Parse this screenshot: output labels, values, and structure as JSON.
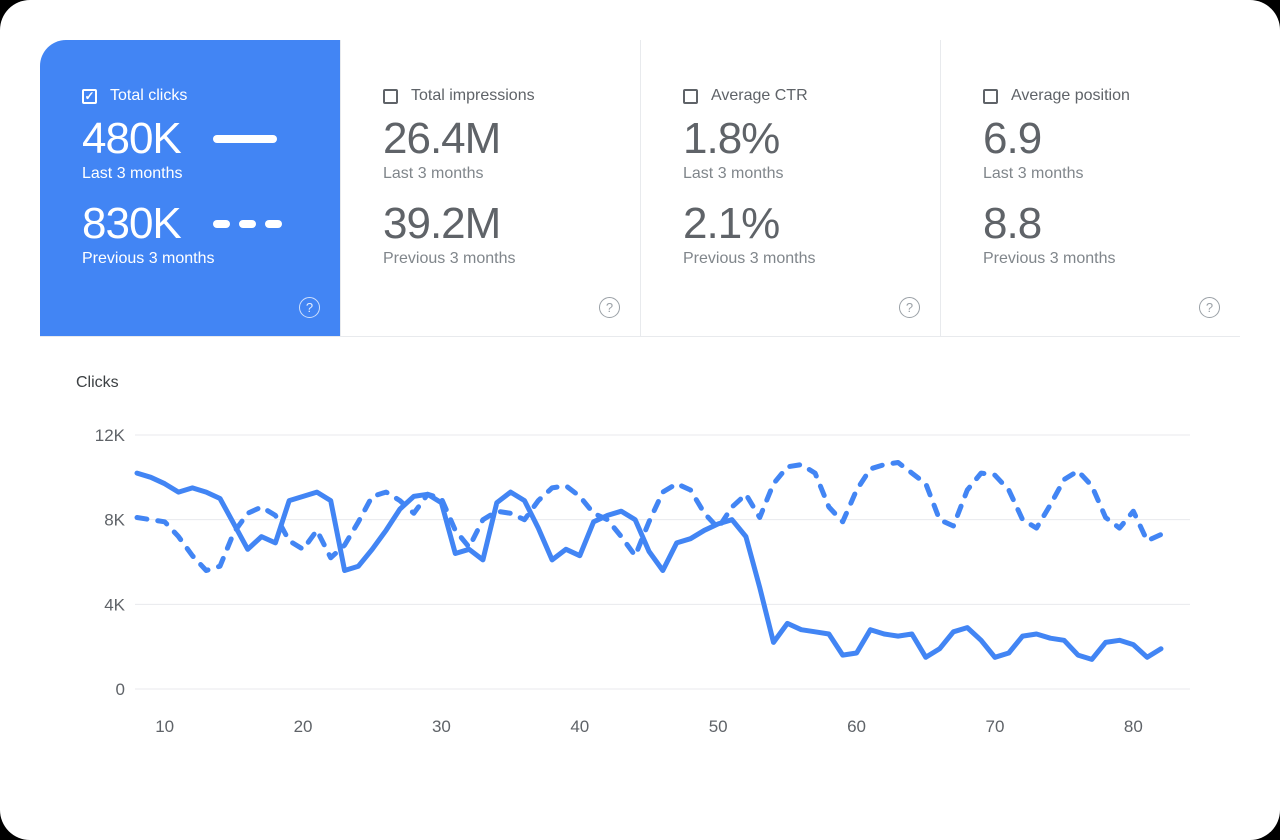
{
  "colors": {
    "accent_blue": "#4285f4",
    "metric_text_gray": "#5f6368",
    "subtext_gray": "#80868b",
    "grid_gray": "#e8eaed"
  },
  "icons": {
    "check_glyph": "✓",
    "help_glyph": "?"
  },
  "cards": [
    {
      "title": "Total clicks",
      "checked": true,
      "current_value": "480K",
      "current_label": "Last 3 months",
      "previous_value": "830K",
      "previous_label": "Previous 3 months"
    },
    {
      "title": "Total impressions",
      "checked": false,
      "current_value": "26.4M",
      "current_label": "Last 3 months",
      "previous_value": "39.2M",
      "previous_label": "Previous 3 months"
    },
    {
      "title": "Average CTR",
      "checked": false,
      "current_value": "1.8%",
      "current_label": "Last 3 months",
      "previous_value": "2.1%",
      "previous_label": "Previous 3 months"
    },
    {
      "title": "Average position",
      "checked": false,
      "current_value": "6.9",
      "current_label": "Last 3 months",
      "previous_value": "8.8",
      "previous_label": "Previous 3 months"
    }
  ],
  "chart_data": {
    "type": "line",
    "title": "Clicks",
    "ylabel": "Clicks",
    "xlabel": "",
    "values_unit": "thousands of clicks",
    "grid": true,
    "line_color": "#4285f4",
    "ylim": [
      0,
      12
    ],
    "xlim": [
      8,
      82
    ],
    "y_ticks": [
      {
        "label": "12K",
        "value": 12
      },
      {
        "label": "8K",
        "value": 8
      },
      {
        "label": "4K",
        "value": 4
      },
      {
        "label": "0",
        "value": 0
      }
    ],
    "x_ticks": [
      10,
      20,
      30,
      40,
      50,
      60,
      70,
      80
    ],
    "x": [
      8,
      9,
      10,
      11,
      12,
      13,
      14,
      15,
      16,
      17,
      18,
      19,
      20,
      21,
      22,
      23,
      24,
      25,
      26,
      27,
      28,
      29,
      30,
      31,
      32,
      33,
      34,
      35,
      36,
      37,
      38,
      39,
      40,
      41,
      42,
      43,
      44,
      45,
      46,
      47,
      48,
      49,
      50,
      51,
      52,
      53,
      54,
      55,
      56,
      57,
      58,
      59,
      60,
      61,
      62,
      63,
      64,
      65,
      66,
      67,
      68,
      69,
      70,
      71,
      72,
      73,
      74,
      75,
      76,
      77,
      78,
      79,
      80,
      81,
      82
    ],
    "series": [
      {
        "name": "Last 3 months",
        "style": "solid",
        "values": [
          10.2,
          10.0,
          9.7,
          9.3,
          9.5,
          9.3,
          9.0,
          7.8,
          6.6,
          7.2,
          6.9,
          8.9,
          9.1,
          9.3,
          8.9,
          5.6,
          5.8,
          6.6,
          7.5,
          8.5,
          9.1,
          9.2,
          8.8,
          6.4,
          6.6,
          6.1,
          8.8,
          9.3,
          8.9,
          7.6,
          6.1,
          6.6,
          6.3,
          7.9,
          8.2,
          8.4,
          8.0,
          6.5,
          5.6,
          6.9,
          7.1,
          7.5,
          7.8,
          8.0,
          7.2,
          4.8,
          2.2,
          3.1,
          2.8,
          2.7,
          2.6,
          1.6,
          1.7,
          2.8,
          2.6,
          2.5,
          2.6,
          1.5,
          1.9,
          2.7,
          2.9,
          2.3,
          1.5,
          1.7,
          2.5,
          2.6,
          2.4,
          2.3,
          1.6,
          1.4,
          2.2,
          2.3,
          2.1,
          1.5,
          1.9
        ]
      },
      {
        "name": "Previous 3 months",
        "style": "dashed",
        "values": [
          8.1,
          8.0,
          7.9,
          7.2,
          6.3,
          5.6,
          5.8,
          7.4,
          8.3,
          8.6,
          8.2,
          7.0,
          6.6,
          7.5,
          6.2,
          6.8,
          7.9,
          9.1,
          9.3,
          8.9,
          8.3,
          9.2,
          9.0,
          7.5,
          6.7,
          8.0,
          8.4,
          8.3,
          8.0,
          8.9,
          9.5,
          9.6,
          9.1,
          8.3,
          8.0,
          7.2,
          6.3,
          7.9,
          9.3,
          9.7,
          9.4,
          8.3,
          7.6,
          8.6,
          9.2,
          8.1,
          9.7,
          10.5,
          10.6,
          10.2,
          8.6,
          7.9,
          9.4,
          10.4,
          10.6,
          10.7,
          10.2,
          9.7,
          8.0,
          7.7,
          9.4,
          10.2,
          10.1,
          9.4,
          8.0,
          7.6,
          8.7,
          9.9,
          10.3,
          9.6,
          8.1,
          7.6,
          8.4,
          7.0,
          7.3
        ]
      }
    ]
  }
}
